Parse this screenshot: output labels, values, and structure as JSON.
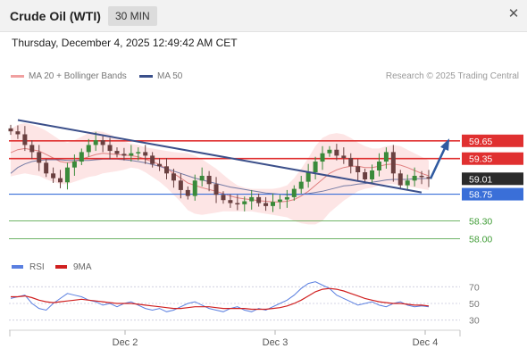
{
  "header": {
    "title": "Crude Oil (WTI)",
    "timeframe": "30 MIN",
    "close_icon": "close-icon"
  },
  "timestamp": "Thursday, December 4, 2025 12:49:42 AM CET",
  "legend": {
    "ma20_label": "MA 20 + Bollinger Bands",
    "ma50_label": "MA 50",
    "copyright": "Research © 2025 Trading Central"
  },
  "colors": {
    "resistance": "#e03030",
    "support": "#3a6fd8",
    "target": "#3f9c35",
    "current_price_badge": "#2b2b2b",
    "trendline": "#3b4f8a",
    "arrow": "#2f5aa0",
    "candle_up": "#3a8a3a",
    "candle_down": "#6a4040",
    "bollinger_fill": "#fbd3d3",
    "ma20": "#e08080",
    "ma50": "#3a4f8a",
    "rsi": "#5a7fe0",
    "rsi_ma": "#d02020"
  },
  "chart_data": [
    {
      "type": "candlestick",
      "ylim": [
        57.75,
        60.55
      ],
      "x_tick_labels": [
        "Dec 2",
        "Dec 3",
        "Dec 4"
      ],
      "current_price": 59.01,
      "levels": [
        {
          "label": "59.65",
          "value": 59.65,
          "kind": "resistance"
        },
        {
          "label": "59.35",
          "value": 59.35,
          "kind": "resistance"
        },
        {
          "label": "59.01",
          "value": 59.01,
          "kind": "current"
        },
        {
          "label": "58.75",
          "value": 58.75,
          "kind": "support"
        },
        {
          "label": "58.30",
          "value": 58.3,
          "kind": "target"
        },
        {
          "label": "58.00",
          "value": 58.0,
          "kind": "target"
        }
      ],
      "closes": [
        59.81,
        59.76,
        59.58,
        59.46,
        59.28,
        59.1,
        59.02,
        58.95,
        59.2,
        59.3,
        59.46,
        59.58,
        59.66,
        59.58,
        59.48,
        59.43,
        59.4,
        59.44,
        59.46,
        59.4,
        59.26,
        59.22,
        59.1,
        58.98,
        58.82,
        58.72,
        58.98,
        59.06,
        58.92,
        58.74,
        58.65,
        58.6,
        58.58,
        58.63,
        58.7,
        58.6,
        58.55,
        58.62,
        58.66,
        58.7,
        58.84,
        58.96,
        59.12,
        59.3,
        59.44,
        59.5,
        59.4,
        59.36,
        59.22,
        59.12,
        59.0,
        59.15,
        59.3,
        59.46,
        59.1,
        58.9,
        58.98,
        59.06,
        59.04,
        59.01
      ],
      "ma20": [
        59.45,
        59.5,
        59.52,
        59.5,
        59.48,
        59.42,
        59.36,
        59.3,
        59.28,
        59.3,
        59.34,
        59.38,
        59.42,
        59.44,
        59.43,
        59.42,
        59.41,
        59.4,
        59.38,
        59.34,
        59.3,
        59.25,
        59.18,
        59.1,
        59.02,
        58.94,
        58.9,
        58.86,
        58.83,
        58.8,
        58.76,
        58.72,
        58.69,
        58.67,
        58.66,
        58.64,
        58.63,
        58.62,
        58.62,
        58.63,
        58.66,
        58.72,
        58.8,
        58.9,
        59.0,
        59.1,
        59.16,
        59.2,
        59.22,
        59.22,
        59.2,
        59.2,
        59.22,
        59.25,
        59.26,
        59.24,
        59.2,
        59.15,
        59.1,
        59.06
      ],
      "ma50": [
        59.1,
        59.2,
        59.26,
        59.3,
        59.32,
        59.33,
        59.33,
        59.33,
        59.32,
        59.32,
        59.32,
        59.32,
        59.33,
        59.34,
        59.34,
        59.34,
        59.33,
        59.32,
        59.3,
        59.28,
        59.25,
        59.22,
        59.18,
        59.14,
        59.1,
        59.06,
        59.02,
        58.99,
        58.96,
        58.93,
        58.9,
        58.87,
        58.85,
        58.83,
        58.81,
        58.79,
        58.77,
        58.76,
        58.75,
        58.74,
        58.74,
        58.75,
        58.76,
        58.78,
        58.8,
        58.83,
        58.86,
        58.89,
        58.9,
        58.92,
        58.93,
        58.95,
        58.97,
        58.99,
        59.0,
        59.0,
        59.0,
        59.01,
        59.01,
        59.02
      ],
      "bb_upper": [
        59.85,
        59.92,
        59.95,
        59.92,
        59.88,
        59.82,
        59.74,
        59.66,
        59.62,
        59.66,
        59.72,
        59.78,
        59.82,
        59.8,
        59.76,
        59.7,
        59.64,
        59.6,
        59.58,
        59.54,
        59.52,
        59.5,
        59.48,
        59.46,
        59.45,
        59.44,
        59.4,
        59.34,
        59.26,
        59.18,
        59.08,
        58.98,
        58.9,
        58.86,
        58.84,
        58.84,
        58.84,
        58.84,
        58.86,
        58.9,
        59.02,
        59.18,
        59.36,
        59.56,
        59.7,
        59.76,
        59.78,
        59.76,
        59.7,
        59.62,
        59.56,
        59.52,
        59.52,
        59.56,
        59.58,
        59.56,
        59.5,
        59.44,
        59.38,
        59.32
      ],
      "bb_lower": [
        59.05,
        59.08,
        59.1,
        59.08,
        59.06,
        59.0,
        58.96,
        58.92,
        58.92,
        58.96,
        59.0,
        59.04,
        59.06,
        59.1,
        59.12,
        59.14,
        59.16,
        59.2,
        59.18,
        59.12,
        59.04,
        58.96,
        58.86,
        58.74,
        58.62,
        58.48,
        58.42,
        58.4,
        58.42,
        58.44,
        58.46,
        58.46,
        58.46,
        58.46,
        58.46,
        58.44,
        58.42,
        58.4,
        58.38,
        58.36,
        58.3,
        58.26,
        58.24,
        58.24,
        58.3,
        58.44,
        58.54,
        58.64,
        58.72,
        58.8,
        58.84,
        58.86,
        58.9,
        58.92,
        58.92,
        58.9,
        58.88,
        58.86,
        58.84,
        58.82
      ],
      "trendline": [
        [
          0,
          60.0
        ],
        [
          59.5,
          58.78
        ]
      ],
      "forecast_arrow": [
        [
          59.5,
          59.01
        ],
        [
          62.0,
          59.65
        ]
      ]
    },
    {
      "type": "line",
      "name": "RSI",
      "ylim": [
        20,
        80
      ],
      "y_tick_labels": [
        "70",
        "50",
        "30"
      ],
      "y_ticks": [
        70,
        50,
        30
      ],
      "series": [
        {
          "name": "RSI",
          "values": [
            56,
            58,
            60,
            50,
            44,
            42,
            50,
            56,
            62,
            60,
            58,
            54,
            52,
            48,
            50,
            46,
            50,
            52,
            48,
            44,
            42,
            44,
            40,
            42,
            46,
            50,
            52,
            48,
            44,
            42,
            40,
            44,
            46,
            42,
            40,
            44,
            42,
            46,
            50,
            54,
            60,
            68,
            74,
            76,
            72,
            68,
            60,
            56,
            52,
            48,
            50,
            52,
            48,
            46,
            50,
            52,
            48,
            46,
            47,
            46
          ]
        },
        {
          "name": "9MA",
          "values": [
            58,
            58,
            59,
            57,
            54,
            52,
            51,
            52,
            53,
            54,
            55,
            54,
            53,
            52,
            51,
            50,
            50,
            50,
            49,
            48,
            47,
            46,
            45,
            44,
            44,
            45,
            46,
            46,
            46,
            45,
            44,
            44,
            44,
            44,
            43,
            43,
            43,
            44,
            45,
            47,
            50,
            54,
            59,
            64,
            67,
            68,
            67,
            65,
            62,
            59,
            56,
            54,
            52,
            51,
            50,
            50,
            49,
            48,
            48,
            47
          ]
        }
      ]
    }
  ],
  "rsi_legend": {
    "rsi_label": "RSI",
    "ma_label": "9MA"
  }
}
